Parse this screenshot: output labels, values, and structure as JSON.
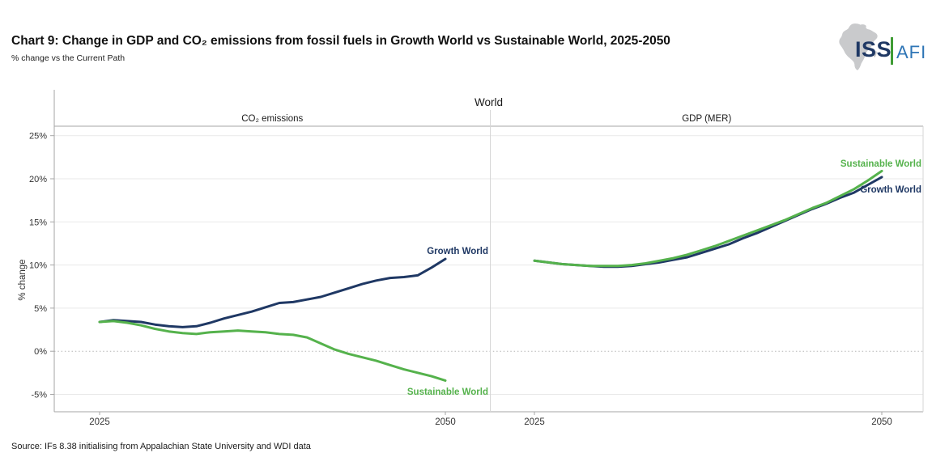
{
  "header": {
    "title": "Chart 9: Change in GDP and CO₂ emissions from fossil fuels in Growth World vs Sustainable World, 2025-2050",
    "subtitle": "% change vs the Current Path"
  },
  "logo": {
    "iss": "ISS",
    "afi": "AFI",
    "map_icon": "africa-silhouette",
    "iss_color": "#1f3864",
    "afi_color": "#2e75b6",
    "bar_color": "#3f9c35",
    "map_color": "#c9cacc"
  },
  "footer": {
    "source": "Source: IFs 8.38 initialising from Appalachian State University and WDI data"
  },
  "chart_data": {
    "type": "line",
    "suptitle": "World",
    "ylabel": "% change",
    "ylim": [
      -7,
      26
    ],
    "grid": "horizontal",
    "zero_line": "dotted",
    "legend_position": "line-end-labels",
    "yticks": [
      {
        "value": 25,
        "label": "25%"
      },
      {
        "value": 20,
        "label": "20%"
      },
      {
        "value": 15,
        "label": "15%"
      },
      {
        "value": 10,
        "label": "10%"
      },
      {
        "value": 5,
        "label": "5%"
      },
      {
        "value": 0,
        "label": "0%"
      },
      {
        "value": -5,
        "label": "-5%"
      }
    ],
    "x": [
      2025,
      2026,
      2027,
      2028,
      2029,
      2030,
      2031,
      2032,
      2033,
      2034,
      2035,
      2036,
      2037,
      2038,
      2039,
      2040,
      2041,
      2042,
      2043,
      2044,
      2045,
      2046,
      2047,
      2048,
      2049,
      2050
    ],
    "xticks": [
      2025,
      2050
    ],
    "xtick_labels": [
      "2025",
      "2050"
    ],
    "facets": [
      {
        "title": "CO₂ emissions",
        "series": [
          {
            "name": "Growth World",
            "color": "#1f3864",
            "values": [
              3.4,
              3.6,
              3.5,
              3.4,
              3.1,
              2.9,
              2.8,
              2.9,
              3.3,
              3.8,
              4.2,
              4.6,
              5.1,
              5.6,
              5.7,
              6.0,
              6.3,
              6.8,
              7.3,
              7.8,
              8.2,
              8.5,
              8.6,
              8.8,
              9.7,
              10.7
            ]
          },
          {
            "name": "Sustainable World",
            "color": "#55b24c",
            "values": [
              3.4,
              3.5,
              3.3,
              3.0,
              2.6,
              2.3,
              2.1,
              2.0,
              2.2,
              2.3,
              2.4,
              2.3,
              2.2,
              2.0,
              1.9,
              1.6,
              0.9,
              0.2,
              -0.3,
              -0.7,
              -1.1,
              -1.6,
              -2.1,
              -2.5,
              -2.9,
              -3.4
            ]
          }
        ]
      },
      {
        "title": "GDP (MER)",
        "series": [
          {
            "name": "Growth World",
            "color": "#1f3864",
            "values": [
              10.5,
              10.3,
              10.1,
              10.0,
              9.9,
              9.8,
              9.8,
              9.9,
              10.1,
              10.3,
              10.6,
              10.9,
              11.4,
              11.9,
              12.4,
              13.1,
              13.7,
              14.4,
              15.1,
              15.8,
              16.5,
              17.1,
              17.8,
              18.4,
              19.3,
              20.2
            ]
          },
          {
            "name": "Sustainable World",
            "color": "#55b24c",
            "values": [
              10.5,
              10.3,
              10.1,
              10.0,
              9.9,
              9.9,
              9.9,
              10.0,
              10.2,
              10.5,
              10.8,
              11.2,
              11.7,
              12.2,
              12.8,
              13.4,
              14.0,
              14.6,
              15.2,
              15.9,
              16.6,
              17.2,
              18.0,
              18.8,
              19.8,
              20.9
            ]
          }
        ]
      }
    ]
  }
}
